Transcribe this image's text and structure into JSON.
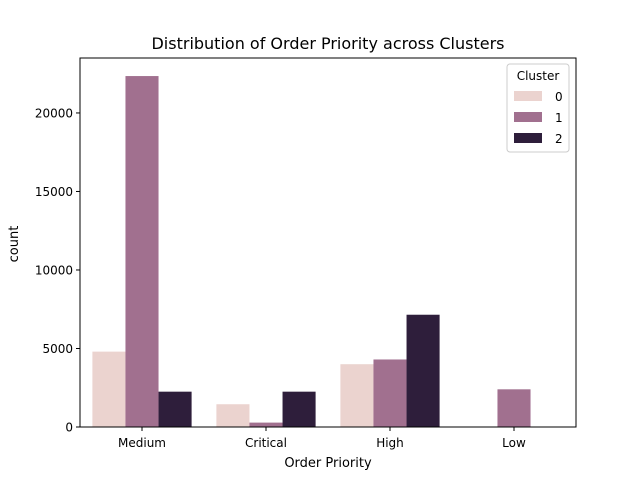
{
  "chart_data": {
    "type": "bar",
    "title": "Distribution of Order Priority across Clusters",
    "xlabel": "Order Priority",
    "ylabel": "count",
    "categories": [
      "Medium",
      "Critical",
      "High",
      "Low"
    ],
    "ylim": [
      0,
      23500
    ],
    "yticks": [
      0,
      5000,
      10000,
      15000,
      20000
    ],
    "grid": false,
    "legend": {
      "title": "Cluster",
      "placement": "top-right"
    },
    "series": [
      {
        "name": "0",
        "color": "#ebd3cf",
        "values": [
          4800,
          1450,
          4000,
          0
        ]
      },
      {
        "name": "1",
        "color": "#a1708f",
        "values": [
          22350,
          280,
          4300,
          2400
        ]
      },
      {
        "name": "2",
        "color": "#2e1e3b",
        "values": [
          2250,
          2250,
          7150,
          0
        ]
      }
    ]
  }
}
